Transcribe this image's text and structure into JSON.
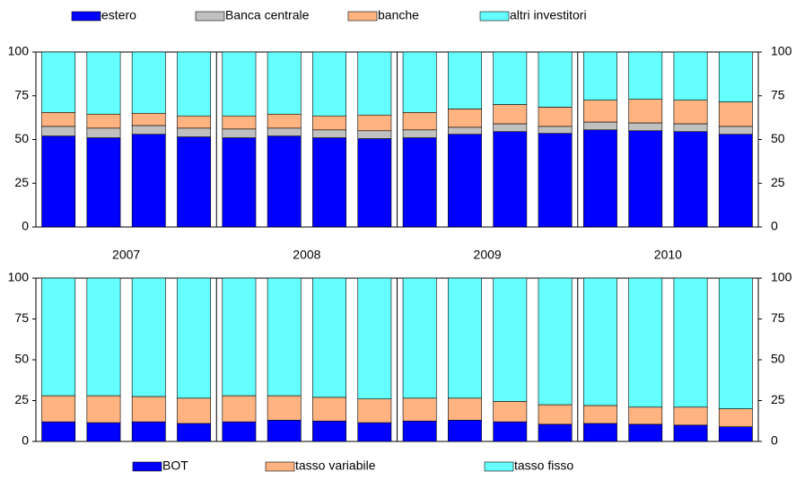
{
  "chart_data": [
    {
      "type": "stacked_bar",
      "categories": [
        null,
        null,
        null,
        null,
        null,
        null,
        null,
        null,
        null,
        null,
        null,
        null,
        null,
        null,
        null,
        null
      ],
      "groups": [
        "2007",
        "2008",
        "2009",
        "2010"
      ],
      "ylim": [
        0,
        100
      ],
      "yticks": [
        0,
        25,
        50,
        75,
        100
      ],
      "series": [
        {
          "name": "estero",
          "color": "#0000ff",
          "values": [
            52,
            51,
            53,
            51.5,
            51,
            52,
            51,
            50.5,
            51,
            53,
            54.5,
            53.5,
            55.5,
            55,
            54.5,
            53
          ]
        },
        {
          "name": "Banca centrale",
          "color": "#c0c0c0",
          "values": [
            5.5,
            5.5,
            5,
            5,
            5,
            4.5,
            4.5,
            4.5,
            4.5,
            4,
            4.5,
            4,
            4.5,
            4.5,
            4.5,
            4.5
          ]
        },
        {
          "name": "banche",
          "color": "#ffb380",
          "values": [
            8,
            8,
            7,
            7,
            7.5,
            8,
            8,
            9,
            10,
            10.5,
            11,
            11,
            12.5,
            13.5,
            13.5,
            14
          ]
        },
        {
          "name": "altri investitori",
          "color": "#66ffff",
          "values": [
            34.5,
            35.5,
            35,
            36.5,
            36.5,
            35.5,
            36.5,
            36,
            34.5,
            32.5,
            30,
            31.5,
            27.5,
            27,
            27.5,
            28.5
          ]
        }
      ]
    },
    {
      "type": "stacked_bar",
      "categories": [
        null,
        null,
        null,
        null,
        null,
        null,
        null,
        null,
        null,
        null,
        null,
        null,
        null,
        null,
        null,
        null
      ],
      "ylim": [
        0,
        100
      ],
      "yticks": [
        0,
        25,
        50,
        75,
        100
      ],
      "series": [
        {
          "name": "BOT",
          "color": "#0000ff",
          "values": [
            12,
            11.5,
            12,
            11,
            12,
            13,
            12.5,
            11.5,
            12.5,
            13,
            12,
            10.5,
            11,
            10.5,
            10,
            9
          ]
        },
        {
          "name": "tasso variabile",
          "color": "#ffb380",
          "values": [
            16,
            16.5,
            15.5,
            15.5,
            16,
            15,
            14.5,
            14.5,
            14,
            13.5,
            12.5,
            12,
            11,
            10.5,
            11,
            11
          ]
        },
        {
          "name": "tasso fisso",
          "color": "#66ffff",
          "values": [
            72,
            72,
            72.5,
            73.5,
            72,
            72,
            73,
            74,
            73.5,
            73.5,
            75.5,
            77.5,
            78,
            79,
            79,
            80
          ]
        }
      ]
    }
  ]
}
